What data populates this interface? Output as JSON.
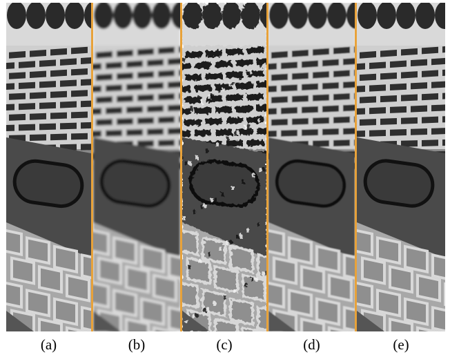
{
  "figure": {
    "separator_color": "#e8a23a",
    "panels": [
      {
        "label": "(a)",
        "variant": "original"
      },
      {
        "label": "(b)",
        "variant": "blurred"
      },
      {
        "label": "(c)",
        "variant": "artifacts"
      },
      {
        "label": "(d)",
        "variant": "smooth"
      },
      {
        "label": "(e)",
        "variant": "sharp"
      }
    ]
  }
}
